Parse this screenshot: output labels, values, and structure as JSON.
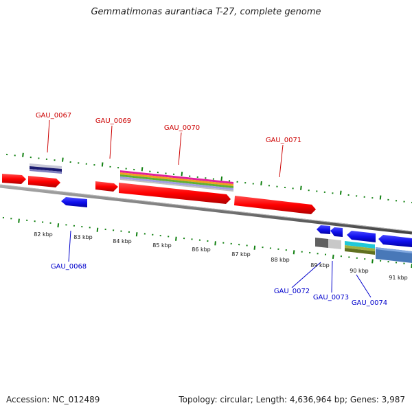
{
  "title": "Gemmatimonas aurantiaca T-27, complete genome",
  "footer": {
    "accession": "Accession: NC_012489",
    "summary": "Topology: circular; Length: 4,636,964 bp; Genes: 3,987"
  },
  "colors": {
    "forward_gene": "#ff0000",
    "reverse_gene": "#1010ee",
    "forward_label": "#cc0000",
    "reverse_label": "#0000cc",
    "backbone": "#777777",
    "tick": "#108010"
  },
  "scale_labels": [
    "82 kbp",
    "83 kbp",
    "84 kbp",
    "85 kbp",
    "86 kbp",
    "87 kbp",
    "88 kbp",
    "89 kbp",
    "90 kbp",
    "91 kbp"
  ],
  "forward_genes": [
    {
      "label": ""
    },
    {
      "label": "GAU_0067"
    },
    {
      "label": "GAU_0069"
    },
    {
      "label": "GAU_0070"
    },
    {
      "label": "GAU_0071"
    }
  ],
  "reverse_genes": [
    {
      "label": "GAU_0068"
    },
    {
      "label": "GAU_0072"
    },
    {
      "label": "GAU_0073"
    },
    {
      "label": "GAU_0074"
    },
    {
      "label": ""
    }
  ]
}
